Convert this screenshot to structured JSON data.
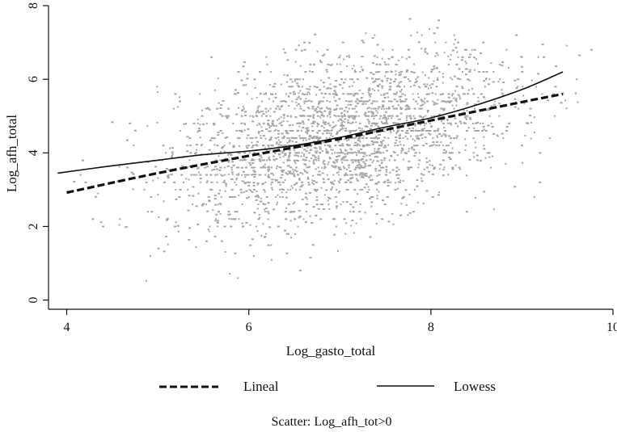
{
  "chart_data": {
    "type": "scatter",
    "xlabel": "Log_gasto_total",
    "ylabel": "Log_afh_total",
    "xlim": [
      3.8,
      10
    ],
    "ylim": [
      -0.25,
      8
    ],
    "xticks": [
      4,
      6,
      8,
      10
    ],
    "yticks": [
      0,
      2,
      4,
      6,
      8
    ],
    "grid": false,
    "legend_position": "bottom",
    "caption": "Scatter: Log_afh_tot>0",
    "point_color": "#a6a6a6",
    "line_color": "#111111",
    "scatter_summary": {
      "x_range": [
        3.9,
        9.8
      ],
      "y_range": [
        -0.2,
        7.9
      ],
      "center": [
        7.0,
        4.5
      ],
      "note": "Dense cloud of several thousand gray points"
    },
    "series": [
      {
        "name": "Lineal",
        "type": "line",
        "style": "dashed",
        "x": [
          4.0,
          5.0,
          6.0,
          7.0,
          8.0,
          9.0,
          9.45
        ],
        "y": [
          2.92,
          3.45,
          3.92,
          4.38,
          4.88,
          5.38,
          5.6
        ]
      },
      {
        "name": "Lowess",
        "type": "line",
        "style": "solid",
        "x": [
          3.9,
          4.5,
          5.0,
          5.5,
          6.0,
          6.5,
          7.0,
          7.5,
          8.0,
          8.5,
          9.0,
          9.45
        ],
        "y": [
          3.45,
          3.65,
          3.8,
          3.95,
          4.05,
          4.2,
          4.42,
          4.7,
          4.95,
          5.3,
          5.72,
          6.2
        ]
      }
    ]
  }
}
